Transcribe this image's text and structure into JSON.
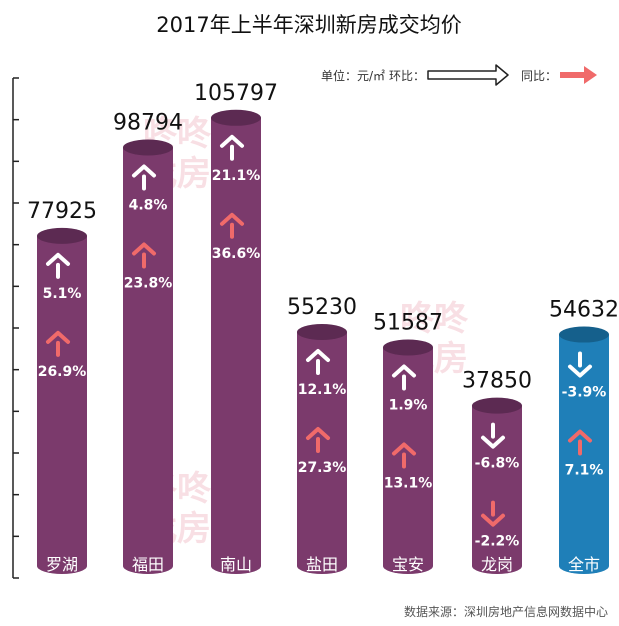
{
  "chart_data": {
    "type": "bar",
    "title": "2017年上半年深圳新房成交均价",
    "unit_label": "单位：元/㎡",
    "legend": {
      "mom_label": "环比：",
      "yoy_label": "同比："
    },
    "source": "数据来源：深圳房地产信息网数据中心",
    "watermark": [
      "咚咚",
      "找房"
    ],
    "ylim": [
      0,
      110000
    ],
    "categories": [
      "罗湖",
      "福田",
      "南山",
      "盐田",
      "宝安",
      "龙岗",
      "全市"
    ],
    "series": [
      {
        "name": "均价",
        "values": [
          77925,
          98794,
          105797,
          55230,
          51587,
          37850,
          54632
        ]
      },
      {
        "name": "环比",
        "values": [
          "5.1%",
          "4.8%",
          "21.1%",
          "12.1%",
          "1.9%",
          "-6.8%",
          "-3.9%"
        ]
      },
      {
        "name": "同比",
        "values": [
          "26.9%",
          "23.8%",
          "36.6%",
          "27.3%",
          "13.1%",
          "-2.2%",
          "7.1%"
        ]
      }
    ],
    "value_labels": [
      "77925",
      "98794",
      "105797",
      "55230",
      "51587",
      "37850",
      "54632"
    ],
    "colors": {
      "bar": "#7b3a6c",
      "bar_top": "#5c2a52",
      "highlight": "#1f7fb8",
      "highlight_top": "#15608c",
      "mom_arrow": "#ffffff",
      "yoy_arrow": "#f06a6a"
    }
  }
}
